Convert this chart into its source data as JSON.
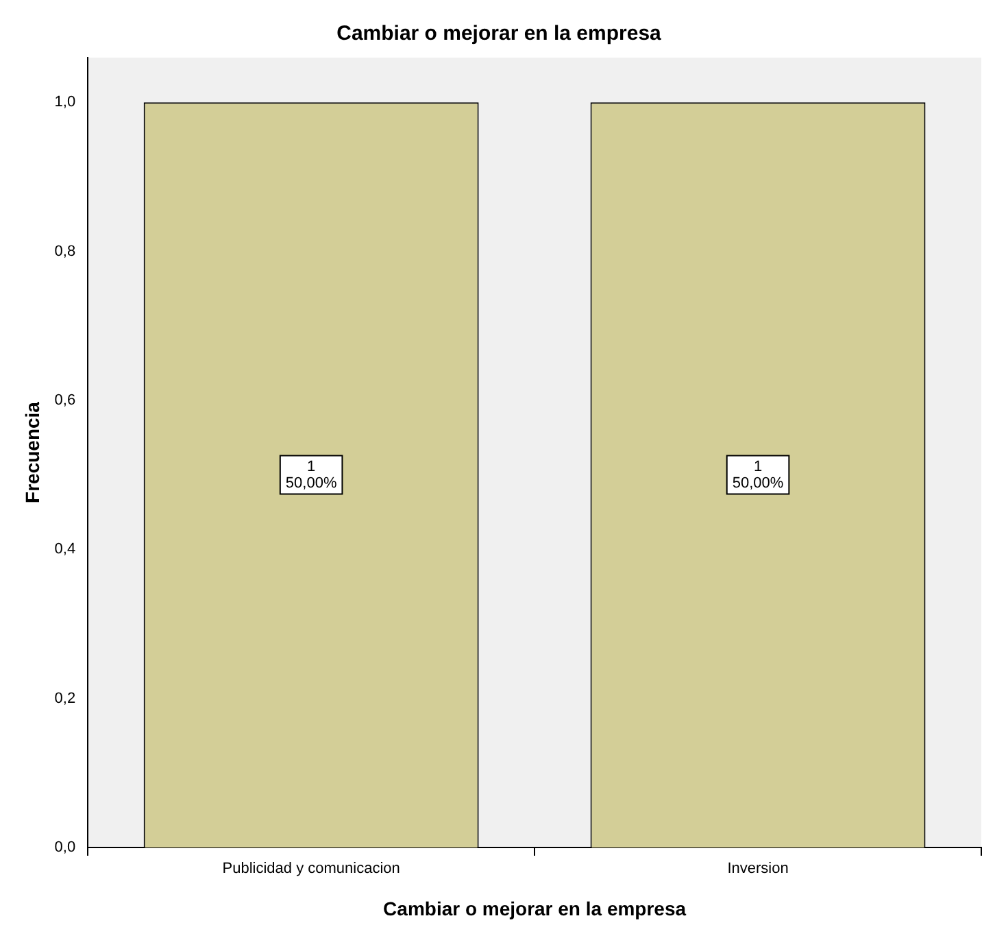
{
  "chart_data": {
    "type": "bar",
    "title": "Cambiar o mejorar en la empresa",
    "xlabel": "Cambiar o mejorar en la empresa",
    "ylabel": "Frecuencia",
    "categories": [
      "Publicidad y comunicacion",
      "Inversion"
    ],
    "values": [
      1,
      1
    ],
    "color": "#d3ce97",
    "value_labels": [
      "1\n50,00%",
      "1\n50,00%"
    ],
    "ylim": [
      0,
      1.06
    ],
    "yticks": [
      {
        "value": 0,
        "label": "0,0"
      },
      {
        "value": 0.2,
        "label": "0,2"
      },
      {
        "value": 0.4,
        "label": "0,4"
      },
      {
        "value": 0.6,
        "label": "0,6"
      },
      {
        "value": 0.8,
        "label": "0,8"
      },
      {
        "value": 1,
        "label": "1,0"
      }
    ],
    "grid": false,
    "legend": false
  }
}
